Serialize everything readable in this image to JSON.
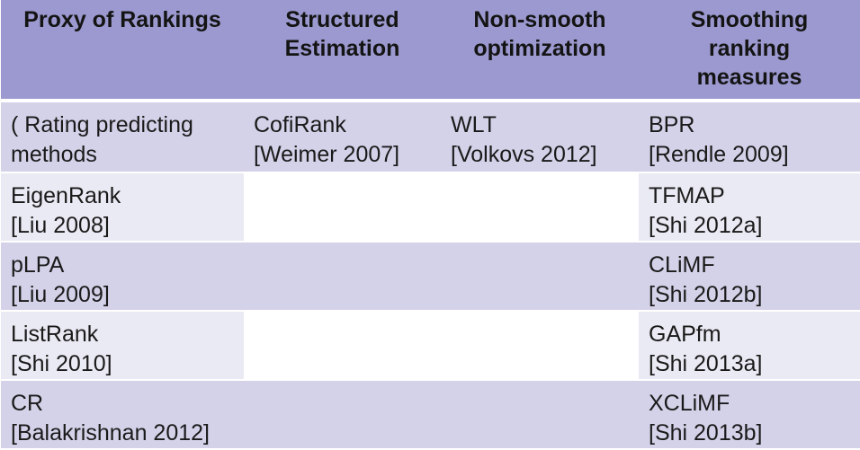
{
  "table": {
    "headers": [
      [
        "Proxy of Rankings"
      ],
      [
        "Structured",
        "Estimation"
      ],
      [
        "Non-smooth",
        "optimization"
      ],
      [
        "Smoothing",
        "ranking",
        "measures"
      ]
    ],
    "rows": [
      [
        [
          "( Rating predicting",
          "methods"
        ],
        [
          "CofiRank",
          "[Weimer 2007]"
        ],
        [
          "WLT",
          "[Volkovs 2012]"
        ],
        [
          "BPR",
          "[Rendle 2009]"
        ]
      ],
      [
        [
          "EigenRank",
          "[Liu 2008]"
        ],
        [],
        [],
        [
          "TFMAP",
          "[Shi 2012a]"
        ]
      ],
      [
        [
          "pLPA",
          "[Liu 2009]"
        ],
        [],
        [],
        [
          "CLiMF",
          "[Shi 2012b]"
        ]
      ],
      [
        [
          "ListRank",
          "[Shi 2010]"
        ],
        [],
        [],
        [
          "GAPfm",
          "[Shi 2013a]"
        ]
      ],
      [
        [
          "CR",
          "[Balakrishnan 2012]"
        ],
        [],
        [],
        [
          "XCLiMF",
          "[Shi 2013b]"
        ]
      ]
    ]
  }
}
